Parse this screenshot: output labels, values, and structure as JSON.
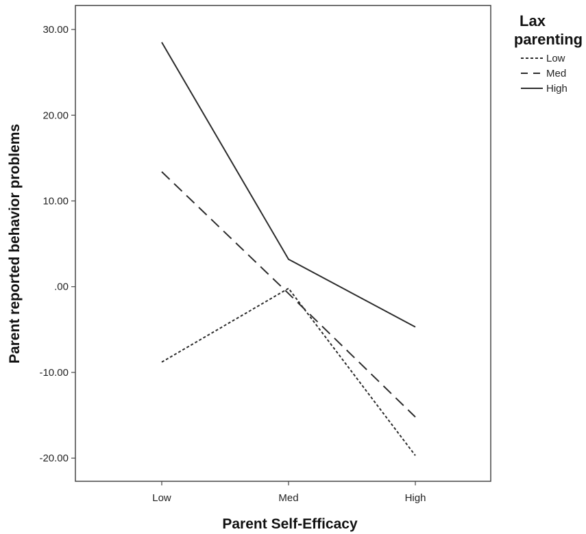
{
  "chart_data": {
    "type": "line",
    "xlabel": "Parent Self-Efficacy",
    "ylabel": "Parent reported behavior problems",
    "categories": [
      "Low",
      "Med",
      "High"
    ],
    "y_ticks": [
      "30.00",
      "20.00",
      "10.00",
      ".00",
      "-10.00",
      "-20.00"
    ],
    "y_tick_values": [
      30,
      20,
      10,
      0,
      -10,
      -20
    ],
    "ylim": [
      -22.7,
      32.8
    ],
    "grid": false,
    "legend": {
      "title_lines": [
        "Lax",
        "parenting"
      ],
      "placement": "right"
    },
    "series": [
      {
        "name": "Low",
        "values": [
          -8.8,
          -0.2,
          -19.7
        ],
        "dash": "4,3"
      },
      {
        "name": "Med",
        "values": [
          13.4,
          -0.8,
          -15.2
        ],
        "dash": "16,9"
      },
      {
        "name": "High",
        "values": [
          28.5,
          3.2,
          -4.7
        ],
        "dash": ""
      }
    ],
    "line_color": "#2b2b2b"
  }
}
